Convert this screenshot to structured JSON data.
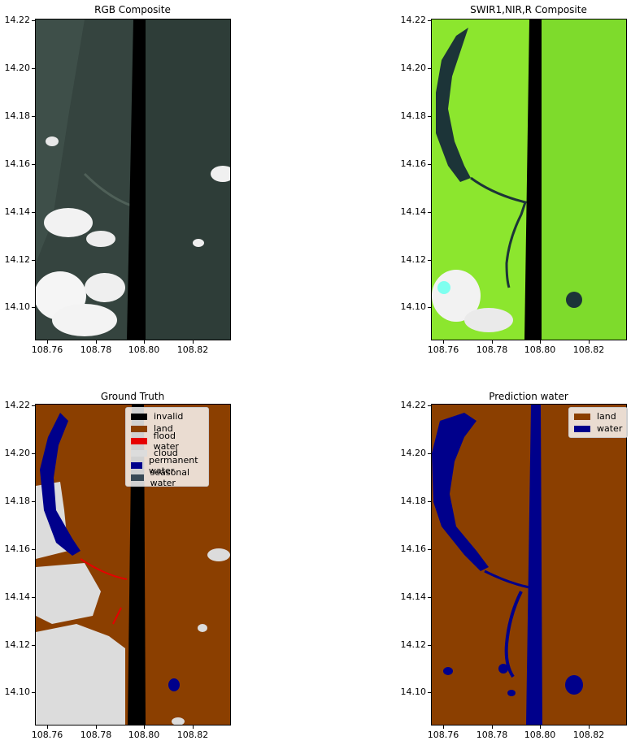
{
  "panels": [
    {
      "title": "RGB Composite"
    },
    {
      "title": "SWIR1,NIR,R Composite"
    },
    {
      "title": "Ground Truth"
    },
    {
      "title": "Prediction water"
    }
  ],
  "y_ticks": [
    "14.22",
    "14.20",
    "14.18",
    "14.16",
    "14.14",
    "14.12",
    "14.10"
  ],
  "x_ticks": [
    "108.76",
    "108.78",
    "108.80",
    "108.82"
  ],
  "ground_truth_legend": [
    {
      "label": "invalid",
      "color": "#000000"
    },
    {
      "label": "land",
      "color": "#8B3F00"
    },
    {
      "label": "flood water",
      "color": "#E60000"
    },
    {
      "label": "cloud",
      "color": "#DCDCDC"
    },
    {
      "label": "permanent water",
      "color": "#00008B"
    },
    {
      "label": "seasonal water",
      "color": "#394A56"
    }
  ],
  "prediction_legend": [
    {
      "label": "land",
      "color": "#8B3F00"
    },
    {
      "label": "water",
      "color": "#00008B"
    }
  ],
  "colors": {
    "rgb_base": "#2E3D38",
    "swir_base": "#8CE62E",
    "land": "#8B3F00",
    "water": "#00008B",
    "cloud": "#DCDCDC",
    "invalid": "#000000",
    "flood": "#E60000"
  }
}
